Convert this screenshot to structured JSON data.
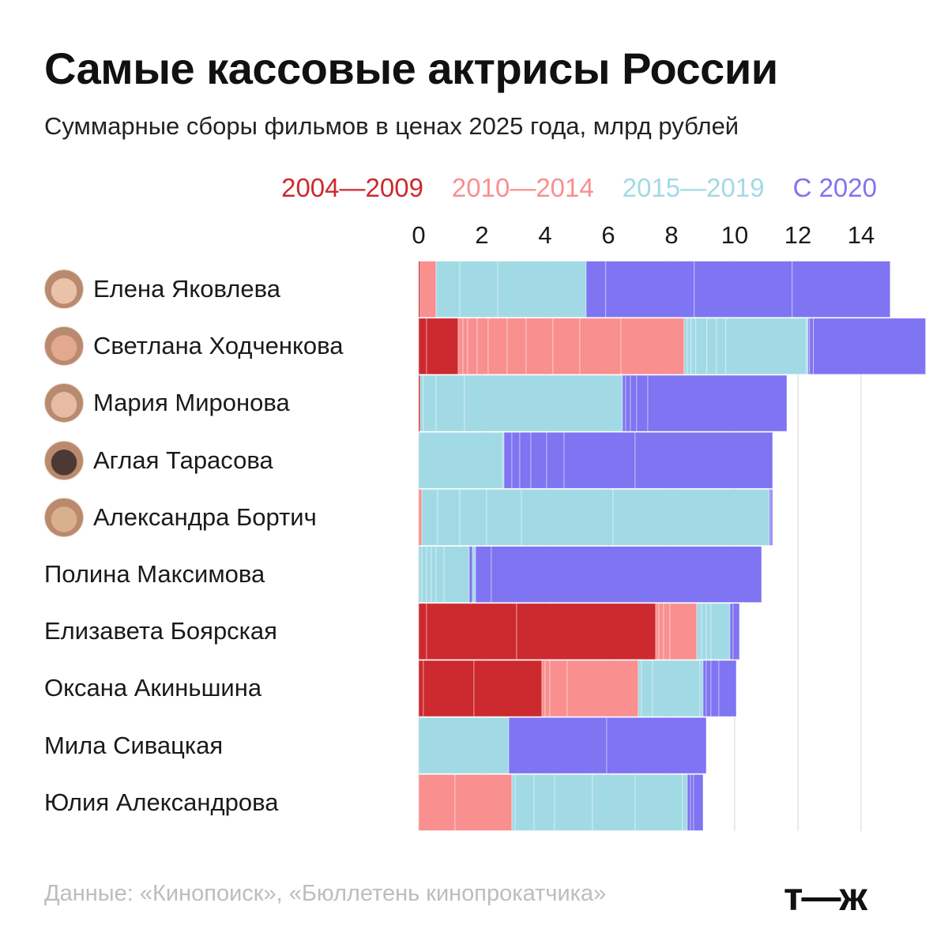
{
  "chart_data": {
    "type": "bar",
    "title": "Самые кассовые актрисы России",
    "subtitle": "Суммарные сборы фильмов в ценах 2025 года, млрд рублей",
    "xlim": [
      0,
      15
    ],
    "ticks": [
      "0",
      "2",
      "4",
      "6",
      "8",
      "10",
      "12",
      "14"
    ],
    "tick_values": [
      0,
      2,
      4,
      6,
      8,
      10,
      12,
      14
    ],
    "legend": [
      {
        "name": "2004—2009",
        "color": "#cc2a2f"
      },
      {
        "name": "2010—2014",
        "color": "#f98f8f"
      },
      {
        "name": "2015—2019",
        "color": "#a1dae5"
      },
      {
        "name": "С 2020",
        "color": "#7f74f2"
      }
    ],
    "rows": [
      {
        "name": "Елена Яковлева",
        "avatar": true,
        "total": 14.98,
        "segments": [
          [
            0,
            0.05
          ],
          [
            1,
            0.5
          ],
          [
            2,
            0.75
          ],
          [
            2,
            1.2
          ],
          [
            2,
            2.8
          ],
          [
            3,
            0.62
          ],
          [
            3,
            2.8
          ],
          [
            3,
            3.1
          ],
          [
            3,
            3.1
          ]
        ]
      },
      {
        "name": "Светлана Ходченкова",
        "avatar": true,
        "total": 14.65,
        "segments": [
          [
            0,
            0.25
          ],
          [
            0,
            1.0
          ],
          [
            1,
            0.15
          ],
          [
            1,
            0.15
          ],
          [
            1,
            0.3
          ],
          [
            1,
            0.35
          ],
          [
            1,
            0.6
          ],
          [
            1,
            0.6
          ],
          [
            1,
            0.85
          ],
          [
            1,
            0.85
          ],
          [
            1,
            1.3
          ],
          [
            1,
            2.0
          ],
          [
            2,
            0.1
          ],
          [
            2,
            0.12
          ],
          [
            2,
            0.15
          ],
          [
            2,
            0.35
          ],
          [
            2,
            0.3
          ],
          [
            2,
            0.3
          ],
          [
            2,
            2.55
          ],
          [
            2,
            0.05
          ],
          [
            3,
            0.05
          ],
          [
            3,
            0.12
          ],
          [
            3,
            3.55
          ]
        ]
      },
      {
        "name": "Мария Миронова",
        "avatar": true,
        "total": 11.8,
        "segments": [
          [
            0,
            0.05
          ],
          [
            2,
            0.1
          ],
          [
            2,
            0.4
          ],
          [
            2,
            0.9
          ],
          [
            2,
            5.0
          ],
          [
            3,
            0.1
          ],
          [
            3,
            0.15
          ],
          [
            3,
            0.2
          ],
          [
            3,
            0.35
          ],
          [
            3,
            4.4
          ]
        ]
      },
      {
        "name": "Аглая Тарасова",
        "avatar": true,
        "total": 11.2,
        "segments": [
          [
            2,
            2.65
          ],
          [
            2,
            0.05
          ],
          [
            3,
            0.25
          ],
          [
            3,
            0.25
          ],
          [
            3,
            0.35
          ],
          [
            3,
            0.5
          ],
          [
            3,
            0.55
          ],
          [
            3,
            2.25
          ],
          [
            3,
            4.35
          ]
        ]
      },
      {
        "name": "Александра Бортич",
        "avatar": true,
        "total": 11.2,
        "segments": [
          [
            1,
            0.1
          ],
          [
            2,
            0.5
          ],
          [
            2,
            0.7
          ],
          [
            2,
            0.85
          ],
          [
            2,
            1.1
          ],
          [
            2,
            2.9
          ],
          [
            2,
            4.95
          ],
          [
            3,
            0.05
          ],
          [
            3,
            0.05
          ]
        ]
      },
      {
        "name": "Полина Максимова",
        "avatar": false,
        "total": 10.85,
        "segments": [
          [
            2,
            0.1
          ],
          [
            2,
            0.15
          ],
          [
            2,
            0.15
          ],
          [
            2,
            0.15
          ],
          [
            2,
            0.25
          ],
          [
            2,
            0.8
          ],
          [
            3,
            0.1
          ],
          [
            2,
            0.1
          ],
          [
            3,
            0.5
          ],
          [
            3,
            8.55
          ]
        ]
      },
      {
        "name": "Елизавета Боярская",
        "avatar": false,
        "total": 10.25,
        "segments": [
          [
            0,
            0.25
          ],
          [
            0,
            2.85
          ],
          [
            0,
            4.4
          ],
          [
            1,
            0.1
          ],
          [
            1,
            0.15
          ],
          [
            1,
            0.2
          ],
          [
            1,
            0.85
          ],
          [
            2,
            0.15
          ],
          [
            2,
            0.15
          ],
          [
            2,
            0.15
          ],
          [
            2,
            0.6
          ],
          [
            3,
            0.1
          ],
          [
            3,
            0.2
          ]
        ]
      },
      {
        "name": "Оксана Акиньшина",
        "avatar": false,
        "total": 9.8,
        "segments": [
          [
            0,
            0.15
          ],
          [
            0,
            1.6
          ],
          [
            0,
            2.15
          ],
          [
            1,
            0.1
          ],
          [
            1,
            0.15
          ],
          [
            1,
            0.55
          ],
          [
            1,
            2.25
          ],
          [
            2,
            0.1
          ],
          [
            2,
            0.35
          ],
          [
            2,
            1.5
          ],
          [
            2,
            0.1
          ],
          [
            3,
            0.1
          ],
          [
            3,
            0.15
          ],
          [
            3,
            0.25
          ],
          [
            3,
            0.55
          ]
        ]
      },
      {
        "name": "Мила Сивацкая",
        "avatar": false,
        "total": 9.1,
        "segments": [
          [
            2,
            2.85
          ],
          [
            3,
            3.1
          ],
          [
            3,
            3.15
          ]
        ]
      },
      {
        "name": "Юлия Александрова",
        "avatar": false,
        "total": 9.0,
        "segments": [
          [
            1,
            1.15
          ],
          [
            1,
            1.8
          ],
          [
            2,
            0.1
          ],
          [
            2,
            0.6
          ],
          [
            2,
            0.65
          ],
          [
            2,
            1.2
          ],
          [
            2,
            1.35
          ],
          [
            2,
            1.5
          ],
          [
            2,
            0.15
          ],
          [
            3,
            0.1
          ],
          [
            3,
            0.1
          ],
          [
            3,
            0.3
          ]
        ]
      }
    ]
  },
  "footer": {
    "source": "Данные: «Кинопоиск», «Бюллетень кинопрокатчика»",
    "logo": "т—ж"
  }
}
